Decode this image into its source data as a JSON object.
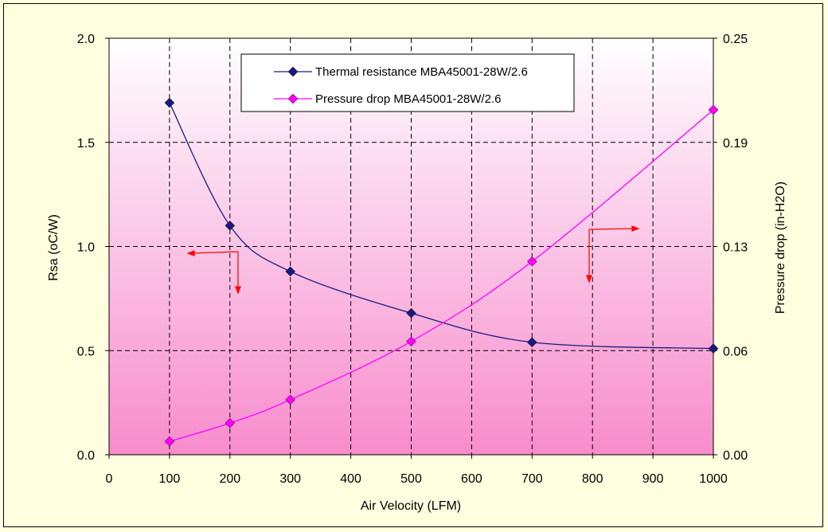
{
  "chart_data": {
    "type": "line",
    "xlabel": "Air Velocity (LFM)",
    "ylabel": "Rsa (oC/W)",
    "y2label": "Pressure drop (in-H2O)",
    "xlim": [
      0,
      1000
    ],
    "ylim": [
      0,
      2.0
    ],
    "y2lim": [
      0,
      0.25
    ],
    "x_ticks": [
      "0",
      "100",
      "200",
      "300",
      "400",
      "500",
      "600",
      "700",
      "800",
      "900",
      "1000"
    ],
    "y_ticks": [
      "0.0",
      "0.5",
      "1.0",
      "1.5",
      "2.0"
    ],
    "y2_ticks": [
      "0.00",
      "0.06",
      "0.13",
      "0.19",
      "0.25"
    ],
    "grid": true,
    "legend_position": "top-center",
    "series": [
      {
        "name": "Thermal resistance MBA45001-28W/2.6",
        "axis": "left",
        "color": "#1a1a7e",
        "marker": "diamond",
        "x": [
          100,
          200,
          300,
          500,
          700,
          1000
        ],
        "values": [
          1.69,
          1.1,
          0.88,
          0.68,
          0.54,
          0.51
        ]
      },
      {
        "name": "Pressure drop MBA45001-28W/2.6",
        "axis": "right",
        "color": "#ff00ff",
        "marker": "diamond",
        "x": [
          100,
          200,
          300,
          500,
          700,
          1000
        ],
        "values": [
          0.008,
          0.019,
          0.033,
          0.068,
          0.116,
          0.207
        ]
      }
    ]
  }
}
